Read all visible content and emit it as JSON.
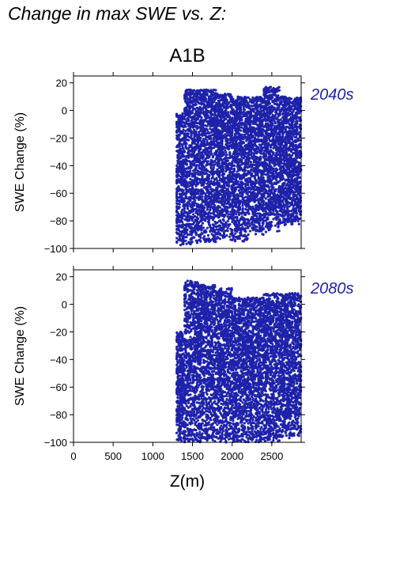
{
  "title": "Change in max SWE vs. Z:",
  "scenario": "A1B",
  "chart_data": [
    {
      "type": "scatter",
      "panel_label": "2040s",
      "ylabel": "SWE Change (%)",
      "xlabel": "",
      "xlim": [
        0,
        2870
      ],
      "ylim": [
        -100,
        25
      ],
      "xticks": [
        0,
        500,
        1000,
        1500,
        2000,
        2500
      ],
      "yticks": [
        -100,
        -80,
        -60,
        -40,
        -20,
        0,
        20
      ],
      "grid": false,
      "marker_color": "#1e22aa",
      "x_range_of_points": [
        1300,
        2870
      ],
      "bands": [
        {
          "x": [
            1300,
            1400
          ],
          "y": [
            -98,
            -2
          ]
        },
        {
          "x": [
            1400,
            1600
          ],
          "y": [
            -97,
            15
          ]
        },
        {
          "x": [
            1600,
            1800
          ],
          "y": [
            -96,
            15
          ]
        },
        {
          "x": [
            1800,
            2000
          ],
          "y": [
            -94,
            12
          ]
        },
        {
          "x": [
            2000,
            2200
          ],
          "y": [
            -95,
            10
          ]
        },
        {
          "x": [
            2200,
            2400
          ],
          "y": [
            -90,
            10
          ]
        },
        {
          "x": [
            2400,
            2600
          ],
          "y": [
            -88,
            17
          ]
        },
        {
          "x": [
            2600,
            2870
          ],
          "y": [
            -83,
            10
          ]
        }
      ]
    },
    {
      "type": "scatter",
      "panel_label": "2080s",
      "ylabel": "SWE Change (%)",
      "xlabel": "Z(m)",
      "xlim": [
        0,
        2870
      ],
      "ylim": [
        -100,
        25
      ],
      "xticks": [
        0,
        500,
        1000,
        1500,
        2000,
        2500
      ],
      "xtick_labels": [
        "0",
        "500",
        "1000",
        "1500",
        "2000",
        "2500"
      ],
      "yticks": [
        -100,
        -80,
        -60,
        -40,
        -20,
        0,
        20
      ],
      "grid": false,
      "marker_color": "#1e22aa",
      "x_range_of_points": [
        1300,
        2870
      ],
      "bands": [
        {
          "x": [
            1300,
            1400
          ],
          "y": [
            -99,
            -20
          ]
        },
        {
          "x": [
            1400,
            1600
          ],
          "y": [
            -100,
            17
          ]
        },
        {
          "x": [
            1600,
            1800
          ],
          "y": [
            -100,
            14
          ]
        },
        {
          "x": [
            1800,
            2000
          ],
          "y": [
            -100,
            12
          ]
        },
        {
          "x": [
            2000,
            2200
          ],
          "y": [
            -100,
            5
          ]
        },
        {
          "x": [
            2200,
            2400
          ],
          "y": [
            -100,
            5
          ]
        },
        {
          "x": [
            2400,
            2600
          ],
          "y": [
            -100,
            8
          ]
        },
        {
          "x": [
            2600,
            2870
          ],
          "y": [
            -97,
            8
          ]
        }
      ]
    }
  ]
}
